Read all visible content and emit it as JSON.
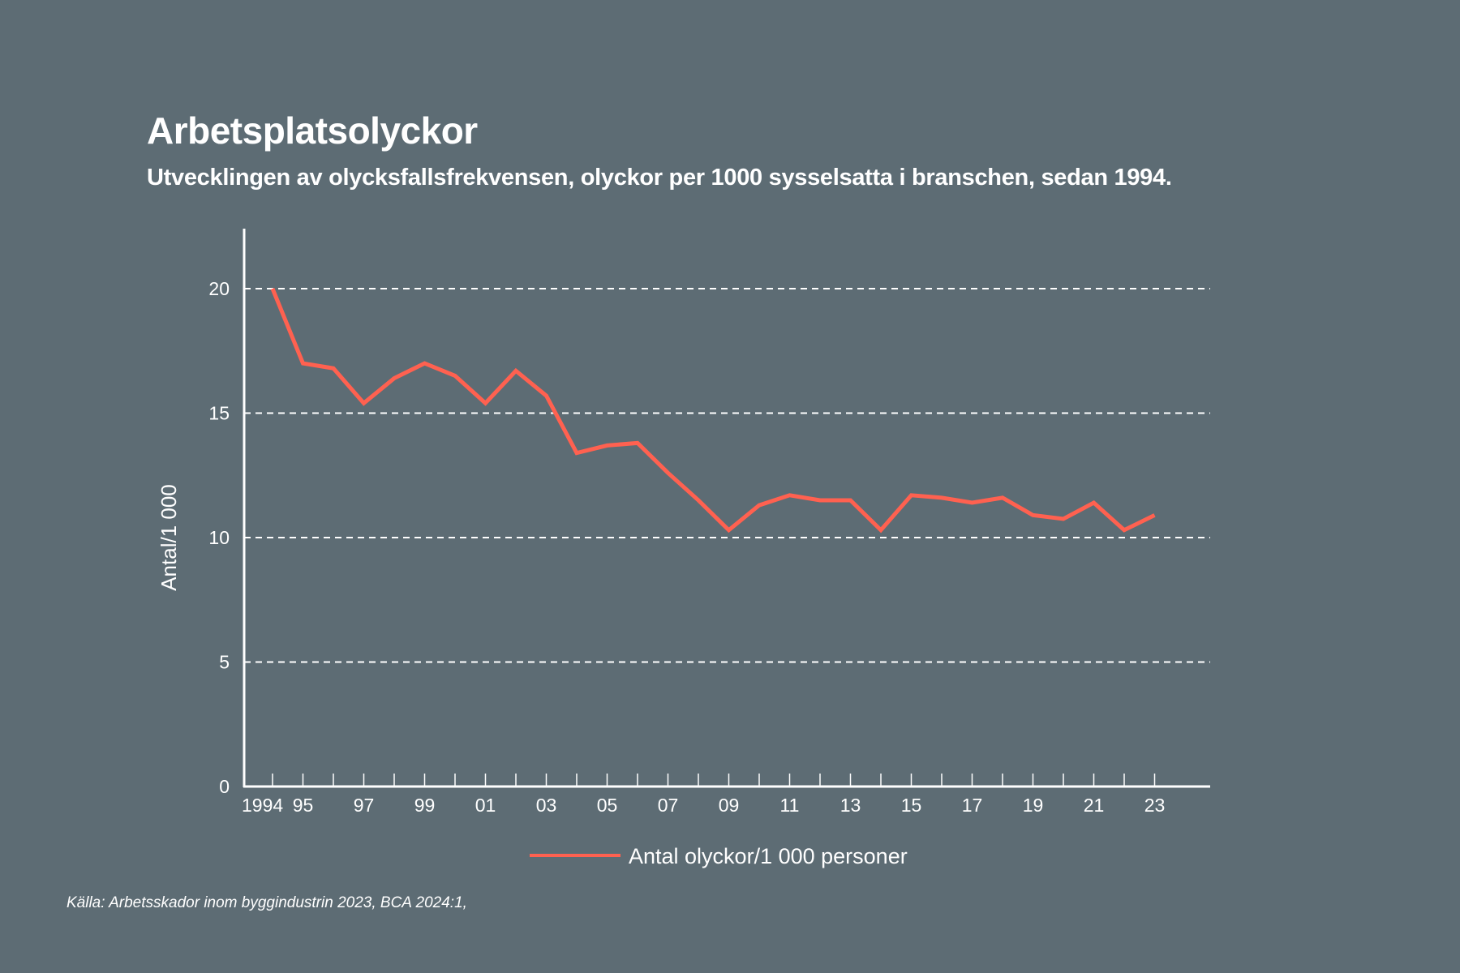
{
  "header": {
    "title": "Arbetsplatsolyckor",
    "subtitle": "Utvecklingen av olycksfallsfrekvensen, olyckor per 1000 sysselsatta i branschen, sedan 1994."
  },
  "source": "Källa: Arbetsskador inom byggindustrin 2023, BCA 2024:1,",
  "colors": {
    "background": "#5d6c74",
    "series": "#ff6150",
    "axis": "#ffffff"
  },
  "chart_data": {
    "type": "line",
    "title": "Arbetsplatsolyckor",
    "subtitle": "Utvecklingen av olycksfallsfrekvensen, olyckor per 1000 sysselsatta i branschen, sedan 1994.",
    "xlabel": "",
    "ylabel": "Antal/1 000",
    "x": [
      1994,
      1995,
      1996,
      1997,
      1998,
      1999,
      2000,
      2001,
      2002,
      2003,
      2004,
      2005,
      2006,
      2007,
      2008,
      2009,
      2010,
      2011,
      2012,
      2013,
      2014,
      2015,
      2016,
      2017,
      2018,
      2019,
      2020,
      2021,
      2022,
      2023
    ],
    "x_tick_labels": [
      "1994",
      "95",
      "",
      "97",
      "",
      "99",
      "",
      "01",
      "",
      "03",
      "",
      "05",
      "",
      "07",
      "",
      "09",
      "",
      "11",
      "",
      "13",
      "",
      "15",
      "",
      "17",
      "",
      "19",
      "",
      "21",
      "",
      "23"
    ],
    "xlim": [
      1993,
      2025
    ],
    "ylim": [
      0,
      22.5
    ],
    "y_ticks": [
      0,
      5,
      10,
      15,
      20
    ],
    "y_tick_labels": [
      "0",
      "5",
      "10",
      "15",
      "20"
    ],
    "grid": "horizontal dashed at 5, 10, 15, 20",
    "series": [
      {
        "name": "Antal olyckor/1 000 personer",
        "color": "#ff6150",
        "values": [
          20.0,
          17.0,
          16.8,
          15.4,
          16.4,
          17.0,
          16.5,
          15.4,
          16.7,
          15.7,
          13.4,
          13.7,
          13.8,
          12.6,
          11.5,
          10.3,
          11.3,
          11.7,
          11.5,
          11.5,
          10.3,
          11.7,
          11.6,
          11.4,
          11.6,
          10.9,
          10.75,
          11.4,
          10.3,
          10.9
        ]
      }
    ],
    "legend": {
      "placement": "bottom-center",
      "entries": [
        "Antal olyckor/1 000 personer"
      ]
    }
  }
}
